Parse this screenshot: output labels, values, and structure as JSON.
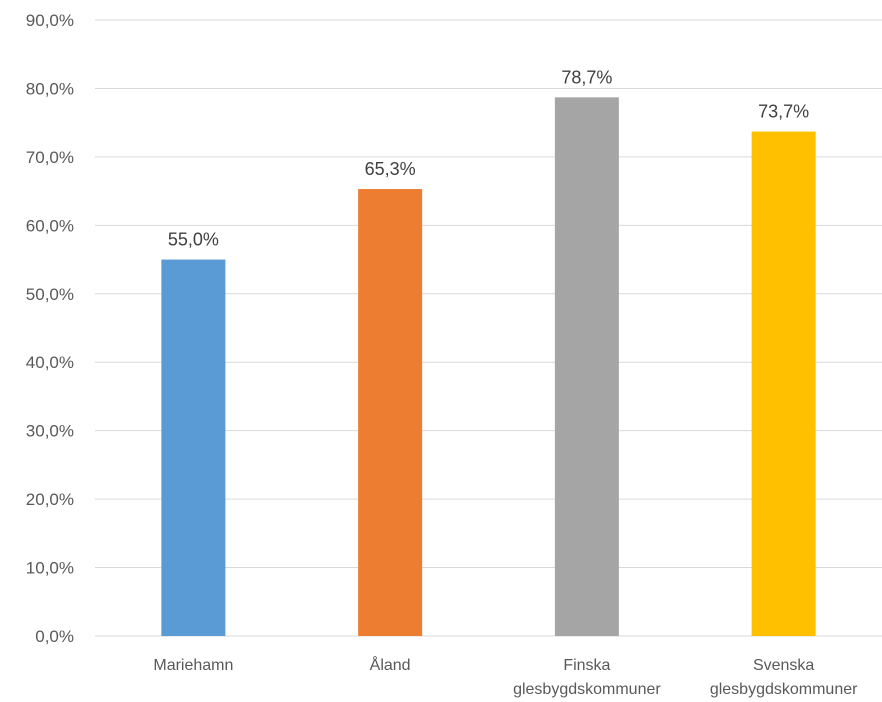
{
  "chart_data": {
    "type": "bar",
    "categories": [
      [
        "Mariehamn"
      ],
      [
        "Åland"
      ],
      [
        "Finska",
        "glesbygdskommuner"
      ],
      [
        "Svenska",
        "glesbygdskommuner"
      ]
    ],
    "values": [
      55.0,
      65.3,
      78.7,
      73.7
    ],
    "data_labels": [
      "55,0%",
      "65,3%",
      "78,7%",
      "73,7%"
    ],
    "colors": [
      "#5b9bd5",
      "#ed7d31",
      "#a5a5a5",
      "#ffc000"
    ],
    "ylim": [
      0,
      90
    ],
    "yticks": [
      0,
      10,
      20,
      30,
      40,
      50,
      60,
      70,
      80,
      90
    ],
    "ytick_labels": [
      "0,0%",
      "10,0%",
      "20,0%",
      "30,0%",
      "40,0%",
      "50,0%",
      "60,0%",
      "70,0%",
      "80,0%",
      "90,0%"
    ],
    "grid": true,
    "legend": "none"
  }
}
